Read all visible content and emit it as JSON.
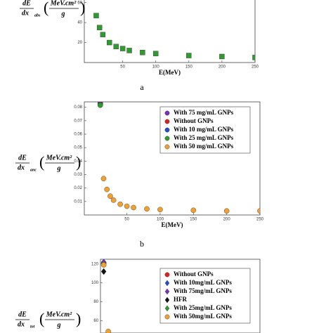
{
  "chart_data": [
    {
      "type": "scatter",
      "caption": "a",
      "xlabel": "E(MeV)",
      "ylabel": {
        "numerator": "dE",
        "denominator": "dx",
        "subscript": "abs",
        "unit_numerator": "MeV.cm²",
        "unit_denominator": "g"
      },
      "xlim": [
        -8,
        250
      ],
      "ylim": [
        0,
        64
      ],
      "xticks": [
        50,
        100,
        150,
        200,
        250
      ],
      "yticks": [
        20,
        40,
        60
      ],
      "series": [
        {
          "color": "#2e9b2e",
          "marker": "square",
          "x": [
            10,
            15,
            20,
            30,
            40,
            50,
            60,
            80,
            100,
            150,
            200,
            250
          ],
          "values": [
            47,
            35,
            28,
            20,
            16,
            14,
            12,
            10,
            9,
            7,
            6,
            5
          ]
        }
      ]
    },
    {
      "type": "scatter",
      "caption": "b",
      "xlabel": "E(MeV)",
      "ylabel": {
        "numerator": "dE",
        "denominator": "dx",
        "subscript": "anc",
        "unit_numerator": "MeV.cm²",
        "unit_denominator": "g"
      },
      "xlim": [
        -14,
        250
      ],
      "ylim": [
        0,
        0.084
      ],
      "xticks": [
        50,
        100,
        150,
        200,
        250
      ],
      "yticks": [
        0.01,
        0.02,
        0.03,
        0.04,
        0.05,
        0.06,
        0.07,
        0.08
      ],
      "series": [
        {
          "name": "With 75 mg/mL GNPs",
          "color": "#7b2fbf",
          "marker": "circle",
          "x": [
            10
          ],
          "values": [
            0.083
          ]
        },
        {
          "name": "Without GNPs",
          "color": "#e02020",
          "marker": "circle",
          "x": [
            10
          ],
          "values": [
            0.0825
          ]
        },
        {
          "name": "With 10 mg/mL GNPs",
          "color": "#2050d0",
          "marker": "circle",
          "x": [
            10
          ],
          "values": [
            0.082
          ]
        },
        {
          "name": "With 25 mg/mL GNPs",
          "color": "#2e9b2e",
          "marker": "circle",
          "x": [
            10
          ],
          "values": [
            0.0815
          ]
        },
        {
          "name": "With 50 mg/mL GNPs",
          "color": "#f0a030",
          "marker": "circle",
          "x": [
            15,
            20,
            25,
            30,
            40,
            50,
            60,
            80,
            100,
            150,
            200,
            250
          ],
          "values": [
            0.027,
            0.019,
            0.014,
            0.011,
            0.008,
            0.0065,
            0.0055,
            0.0045,
            0.004,
            0.0035,
            0.003,
            0.003
          ]
        }
      ]
    },
    {
      "type": "scatter",
      "ylabel": {
        "numerator": "dE",
        "denominator": "dx",
        "subscript": "tot",
        "unit_numerator": "MeV.cm²",
        "unit_denominator": "g"
      },
      "xlim": [
        5,
        250
      ],
      "ylim": [
        47,
        125
      ],
      "yticks": [
        60,
        80,
        100,
        120
      ],
      "series": [
        {
          "name": "Without GNPs",
          "color": "#e02020",
          "marker": "circle",
          "x": [
            10
          ],
          "values": [
            121
          ]
        },
        {
          "name": "With 10mg/mL GNPs",
          "color": "#2050d0",
          "marker": "diamond",
          "x": [
            10
          ],
          "values": [
            121.5
          ]
        },
        {
          "name": "With 75mg/mL GNPs",
          "color": "#7b2fbf",
          "marker": "diamond",
          "x": [
            10
          ],
          "values": [
            122
          ]
        },
        {
          "name": "HFR",
          "color": "#111111",
          "marker": "diamond",
          "x": [
            10
          ],
          "values": [
            112
          ]
        },
        {
          "name": "With 25mg/mL GNPs",
          "color": "#2e9b2e",
          "marker": "diamond",
          "x": [
            10
          ],
          "values": [
            120
          ]
        },
        {
          "name": "With 50mg/mL GNPs",
          "color": "#f0a030",
          "marker": "circle",
          "x": [
            10,
            17
          ],
          "values": [
            119,
            48.6
          ]
        }
      ]
    }
  ]
}
